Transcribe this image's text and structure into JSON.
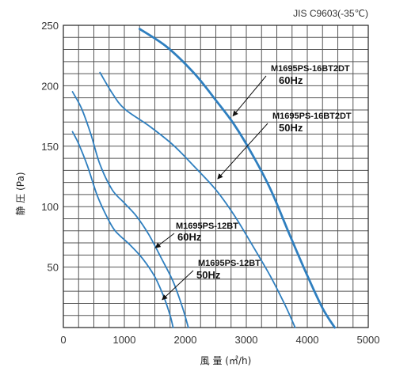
{
  "chart_data": {
    "type": "line",
    "standard": "JIS C9603(-35℃)",
    "xlabel": "風 量 (㎥/h)",
    "ylabel": "静 圧 (Pa)",
    "xlim": [
      0,
      5000
    ],
    "ylim": [
      0,
      250
    ],
    "xticks": [
      0,
      1000,
      2000,
      3000,
      4000,
      5000
    ],
    "yticks": [
      50,
      100,
      150,
      200,
      250
    ],
    "grid": true,
    "line_color": "#2f7fbf",
    "series": [
      {
        "model": "M1695PS-16BT2DT",
        "freq": "60Hz",
        "points": [
          [
            1250,
            247
          ],
          [
            1700,
            232
          ],
          [
            2150,
            210
          ],
          [
            2500,
            188
          ],
          [
            2800,
            168
          ],
          [
            3100,
            143
          ],
          [
            3400,
            114
          ],
          [
            3700,
            78
          ],
          [
            4000,
            43
          ],
          [
            4250,
            16
          ],
          [
            4450,
            0
          ]
        ]
      },
      {
        "model": "M1695PS-16BT2DT",
        "freq": "50Hz",
        "points": [
          [
            600,
            211
          ],
          [
            800,
            194
          ],
          [
            1000,
            181
          ],
          [
            1400,
            167
          ],
          [
            1800,
            151
          ],
          [
            2150,
            133
          ],
          [
            2500,
            114
          ],
          [
            2800,
            93
          ],
          [
            3100,
            68
          ],
          [
            3400,
            42
          ],
          [
            3650,
            17
          ],
          [
            3800,
            0
          ]
        ]
      },
      {
        "model": "M1695PS-12BT",
        "freq": "60Hz",
        "points": [
          [
            150,
            195
          ],
          [
            300,
            181
          ],
          [
            450,
            160
          ],
          [
            600,
            135
          ],
          [
            800,
            114
          ],
          [
            1000,
            103
          ],
          [
            1200,
            92
          ],
          [
            1400,
            77
          ],
          [
            1600,
            58
          ],
          [
            1800,
            38
          ],
          [
            1950,
            17
          ],
          [
            2050,
            0
          ]
        ]
      },
      {
        "model": "M1695PS-12BT",
        "freq": "50Hz",
        "points": [
          [
            150,
            162
          ],
          [
            250,
            152
          ],
          [
            400,
            133
          ],
          [
            550,
            110
          ],
          [
            700,
            93
          ],
          [
            850,
            80
          ],
          [
            1100,
            68
          ],
          [
            1300,
            57
          ],
          [
            1500,
            42
          ],
          [
            1650,
            25
          ],
          [
            1750,
            10
          ],
          [
            1800,
            0
          ]
        ]
      }
    ],
    "annotations": [
      {
        "series": 0,
        "model_text": "M1695PS-16BT2DT",
        "freq_text": "60Hz",
        "at": [
          2780,
          175
        ]
      },
      {
        "series": 1,
        "model_text": "M1695PS-16BT2DT",
        "freq_text": "50Hz",
        "at": [
          2530,
          123
        ]
      },
      {
        "series": 2,
        "model_text": "M1695PS-12BT",
        "freq_text": "60Hz",
        "at": [
          1510,
          66
        ]
      },
      {
        "series": 3,
        "model_text": "M1695PS-12BT",
        "freq_text": "50Hz",
        "at": [
          1620,
          23
        ]
      }
    ]
  }
}
